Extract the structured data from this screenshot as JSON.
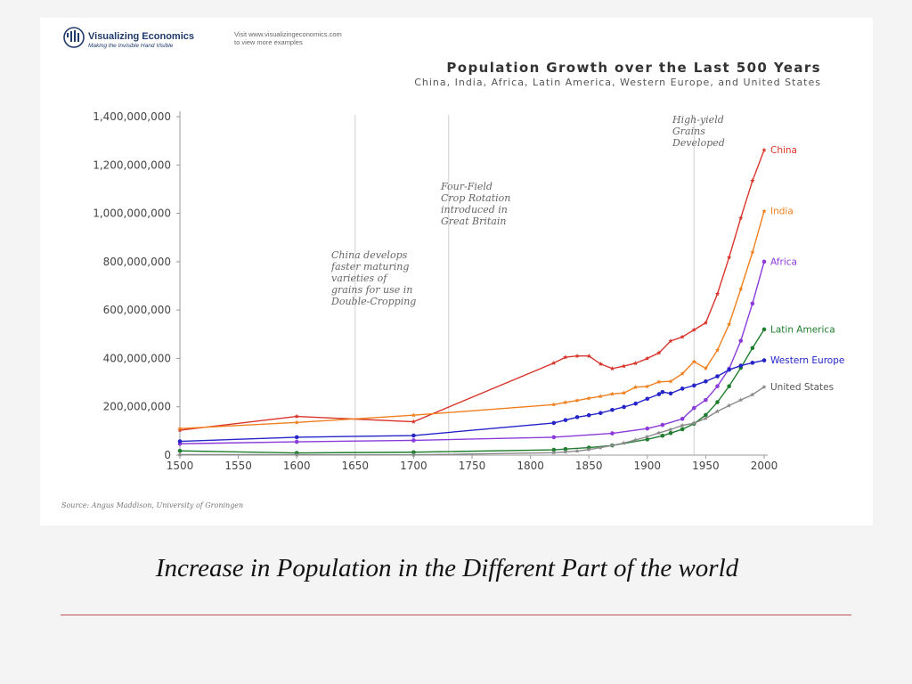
{
  "header": {
    "brand_name": "Visualizing Economics",
    "brand_tagline": "Making the Invisible Hand Visible",
    "visit_line1": "Visit www.visualizingeconomics.com",
    "visit_line2": "to view more examples",
    "logo_icon": "globe-logo-icon"
  },
  "chart_data": {
    "type": "line",
    "title": "Population Growth over the Last 500 Years",
    "subtitle": "China, India, Africa, Latin America, Western Europe, and United States",
    "xlabel": "",
    "ylabel": "",
    "xlim": [
      1500,
      2000
    ],
    "ylim": [
      0,
      1400000000
    ],
    "x_ticks": [
      1500,
      1550,
      1600,
      1650,
      1700,
      1750,
      1800,
      1850,
      1900,
      1950,
      2000
    ],
    "y_ticks": [
      0,
      200000000,
      400000000,
      600000000,
      800000000,
      1000000000,
      1200000000,
      1400000000
    ],
    "y_tick_labels": [
      "0",
      "200,000,000",
      "400,000,000",
      "600,000,000",
      "800,000,000",
      "1,000,000,000",
      "1,200,000,000",
      "1,400,000,000"
    ],
    "grid": false,
    "legend": "right end labels",
    "source": "Source: Angus Maddison, University of Groningen",
    "annotations": [
      {
        "x": 1650,
        "lines": [
          "China develops",
          "faster maturing",
          "varieties of",
          "grains for use in",
          "Double-Cropping"
        ]
      },
      {
        "x": 1730,
        "lines": [
          "Four-Field",
          "Crop Rotation",
          "introduced in",
          "Great Britain"
        ]
      },
      {
        "x": 1940,
        "lines": [
          "High-yield",
          "Grains",
          "Developed"
        ]
      }
    ],
    "series": [
      {
        "name": "China",
        "color": "#d9342b",
        "marker": "star",
        "x": [
          1500,
          1600,
          1700,
          1820,
          1830,
          1840,
          1850,
          1860,
          1870,
          1880,
          1890,
          1900,
          1910,
          1920,
          1930,
          1940,
          1950,
          1960,
          1970,
          1980,
          1990,
          2000
        ],
        "y": [
          103000000,
          160000000,
          138000000,
          381000000,
          405000000,
          410000000,
          410000000,
          377000000,
          358000000,
          368000000,
          380000000,
          400000000,
          423000000,
          472000000,
          489000000,
          518000000,
          547000000,
          667000000,
          818000000,
          981000000,
          1135000000,
          1262000000
        ]
      },
      {
        "name": "India",
        "color": "#f07f1d",
        "marker": "star",
        "x": [
          1500,
          1600,
          1700,
          1820,
          1830,
          1840,
          1850,
          1860,
          1870,
          1880,
          1890,
          1900,
          1910,
          1920,
          1930,
          1940,
          1950,
          1960,
          1970,
          1980,
          1990,
          2000
        ],
        "y": [
          110000000,
          135000000,
          165000000,
          209000000,
          218000000,
          226000000,
          235000000,
          243000000,
          253000000,
          257000000,
          281000000,
          284000000,
          303000000,
          305000000,
          337000000,
          387000000,
          359000000,
          434000000,
          541000000,
          687000000,
          839000000,
          1009000000
        ]
      },
      {
        "name": "Africa",
        "color": "#8a3bd9",
        "marker": "dot",
        "x": [
          1500,
          1600,
          1700,
          1820,
          1870,
          1900,
          1913,
          1930,
          1940,
          1950,
          1960,
          1970,
          1980,
          1990,
          2000
        ],
        "y": [
          47000000,
          55000000,
          61000000,
          74000000,
          90000000,
          110000000,
          125000000,
          150000000,
          195000000,
          228000000,
          285000000,
          357000000,
          473000000,
          627000000,
          800000000
        ]
      },
      {
        "name": "Latin America",
        "color": "#1e7d2e",
        "marker": "dot",
        "x": [
          1500,
          1600,
          1700,
          1820,
          1830,
          1850,
          1870,
          1900,
          1913,
          1920,
          1930,
          1940,
          1950,
          1960,
          1970,
          1980,
          1990,
          2000
        ],
        "y": [
          17500000,
          9000000,
          12000000,
          22000000,
          25000000,
          31000000,
          40000000,
          65000000,
          80000000,
          91000000,
          107000000,
          130000000,
          166000000,
          219000000,
          285000000,
          361000000,
          443000000,
          520000000
        ]
      },
      {
        "name": "Western Europe",
        "color": "#2424c8",
        "marker": "dot",
        "x": [
          1500,
          1600,
          1700,
          1820,
          1830,
          1840,
          1850,
          1860,
          1870,
          1880,
          1890,
          1900,
          1910,
          1913,
          1920,
          1930,
          1940,
          1950,
          1960,
          1970,
          1980,
          1990,
          2000
        ],
        "y": [
          57000000,
          74000000,
          81000000,
          133000000,
          145000000,
          157000000,
          165000000,
          174000000,
          187000000,
          199000000,
          213000000,
          233000000,
          252000000,
          261000000,
          255000000,
          275000000,
          288000000,
          305000000,
          326000000,
          353000000,
          370000000,
          382000000,
          392000000
        ]
      },
      {
        "name": "United States",
        "color": "#8a8a8a",
        "marker": "star",
        "x": [
          1500,
          1600,
          1700,
          1820,
          1830,
          1840,
          1850,
          1860,
          1870,
          1880,
          1890,
          1900,
          1910,
          1920,
          1930,
          1940,
          1950,
          1960,
          1970,
          1980,
          1990,
          2000
        ],
        "y": [
          2000000,
          1500000,
          1000000,
          10000000,
          13000000,
          17000000,
          23000000,
          31000000,
          40000000,
          50000000,
          63000000,
          76000000,
          92000000,
          106000000,
          123000000,
          132000000,
          152000000,
          181000000,
          205000000,
          228000000,
          250000000,
          282000000
        ]
      }
    ]
  },
  "caption": "Increase in Population in  the Different Part of the world"
}
